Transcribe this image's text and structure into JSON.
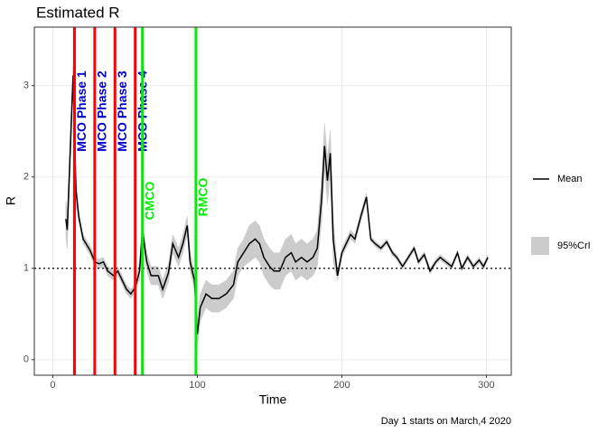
{
  "chart_data": {
    "type": "line",
    "title": "Estimated R",
    "x_label": "Time",
    "y_label": "R",
    "caption": "Day 1 starts on March,4 2020",
    "xlim": [
      -12.8,
      317.2
    ],
    "ylim": [
      -0.17,
      3.64
    ],
    "xticks": [
      0,
      100,
      200,
      300
    ],
    "yticks": [
      0,
      1,
      2,
      3
    ],
    "grid": true,
    "legend": "right",
    "hline": 1,
    "x": [
      9,
      10,
      14,
      16,
      18,
      21,
      23,
      26,
      29,
      32,
      35,
      38,
      42,
      45,
      48,
      51,
      54,
      57,
      60,
      62,
      65,
      68,
      73,
      76,
      80,
      83,
      87,
      90,
      93,
      95,
      98,
      100,
      102,
      106,
      110,
      115,
      120,
      125,
      128,
      132,
      136,
      140,
      143,
      146,
      150,
      153,
      157,
      161,
      165,
      168,
      172,
      176,
      180,
      183,
      186,
      188,
      190,
      192,
      194,
      197,
      200,
      203,
      206,
      209,
      213,
      217,
      220,
      223,
      227,
      231,
      235,
      238,
      242,
      246,
      250,
      253,
      257,
      261,
      265,
      268,
      272,
      276,
      280,
      283,
      287,
      291,
      295,
      298,
      301
    ],
    "series": [
      {
        "name": "Mean",
        "color": "#000000",
        "values": [
          1.54,
          1.42,
          3.11,
          1.86,
          1.56,
          1.32,
          1.27,
          1.19,
          1.07,
          1.05,
          1.07,
          0.97,
          0.92,
          0.97,
          0.87,
          0.77,
          0.72,
          0.79,
          0.97,
          1.42,
          1.07,
          0.92,
          0.92,
          0.77,
          0.95,
          1.27,
          1.12,
          1.27,
          1.47,
          1.07,
          0.87,
          0.28,
          0.57,
          0.72,
          0.67,
          0.67,
          0.72,
          0.82,
          1.07,
          1.17,
          1.27,
          1.32,
          1.27,
          1.12,
          1.02,
          0.97,
          0.97,
          1.12,
          1.17,
          1.07,
          1.12,
          1.07,
          1.12,
          1.22,
          1.76,
          2.34,
          1.96,
          2.26,
          1.32,
          0.92,
          1.17,
          1.27,
          1.37,
          1.32,
          1.56,
          1.78,
          1.32,
          1.27,
          1.22,
          1.29,
          1.17,
          1.12,
          1.02,
          1.12,
          1.22,
          1.07,
          1.15,
          0.97,
          1.07,
          1.12,
          1.07,
          1.02,
          1.17,
          1.0,
          1.12,
          1.02,
          1.09,
          1.02,
          1.12
        ]
      },
      {
        "name": "95%CrI",
        "color": "#cccccc",
        "lower": [
          1.34,
          1.22,
          3.01,
          1.71,
          1.51,
          1.27,
          1.22,
          1.14,
          1.02,
          1.0,
          1.02,
          0.92,
          0.87,
          0.92,
          0.82,
          0.72,
          0.67,
          0.74,
          0.87,
          1.32,
          0.97,
          0.82,
          0.82,
          0.67,
          0.85,
          1.17,
          1.02,
          1.17,
          1.37,
          0.97,
          0.77,
          0.13,
          0.42,
          0.57,
          0.52,
          0.52,
          0.57,
          0.67,
          0.92,
          1.02,
          1.07,
          1.12,
          1.07,
          0.92,
          0.82,
          0.77,
          0.77,
          0.92,
          0.97,
          0.87,
          0.92,
          0.87,
          0.92,
          1.02,
          1.51,
          2.09,
          1.71,
          2.01,
          1.07,
          0.87,
          1.12,
          1.22,
          1.32,
          1.27,
          1.51,
          1.73,
          1.29,
          1.24,
          1.19,
          1.26,
          1.14,
          1.09,
          0.99,
          1.09,
          1.19,
          1.04,
          1.12,
          0.94,
          1.04,
          1.09,
          1.04,
          0.99,
          1.14,
          0.97,
          1.09,
          0.99,
          1.06,
          0.99,
          1.09
        ],
        "upper": [
          1.74,
          1.62,
          3.21,
          2.01,
          1.61,
          1.37,
          1.32,
          1.24,
          1.12,
          1.1,
          1.12,
          1.02,
          0.97,
          1.02,
          0.92,
          0.82,
          0.77,
          0.84,
          1.07,
          1.52,
          1.17,
          1.02,
          1.02,
          0.87,
          1.05,
          1.37,
          1.22,
          1.37,
          1.57,
          1.17,
          0.97,
          0.43,
          0.72,
          0.87,
          0.82,
          0.82,
          0.87,
          0.97,
          1.22,
          1.32,
          1.47,
          1.52,
          1.47,
          1.32,
          1.22,
          1.17,
          1.17,
          1.32,
          1.37,
          1.27,
          1.32,
          1.27,
          1.32,
          1.42,
          2.01,
          2.59,
          2.21,
          2.51,
          1.57,
          0.97,
          1.22,
          1.32,
          1.42,
          1.37,
          1.61,
          1.83,
          1.35,
          1.3,
          1.25,
          1.32,
          1.2,
          1.15,
          1.05,
          1.15,
          1.25,
          1.1,
          1.18,
          1.0,
          1.1,
          1.15,
          1.1,
          1.05,
          1.2,
          1.03,
          1.15,
          1.05,
          1.12,
          1.05,
          1.15
        ]
      }
    ],
    "annotations": [
      {
        "label": "MCO Phase 1",
        "x": 15,
        "y": 2.72,
        "line_color": "#ff0000",
        "text_color": "#0000cc"
      },
      {
        "label": "MCO Phase 2",
        "x": 29,
        "y": 2.72,
        "line_color": "#ff0000",
        "text_color": "#0000cc"
      },
      {
        "label": "MCO Phase 3",
        "x": 43,
        "y": 2.72,
        "line_color": "#ff0000",
        "text_color": "#0000cc"
      },
      {
        "label": "MCO Phase 4",
        "x": 57,
        "y": 2.72,
        "line_color": "#ff0000",
        "text_color": "#0000cc"
      },
      {
        "label": "CMCO",
        "x": 62,
        "y": 1.74,
        "line_color": "#00ee00",
        "text_color": "#00ee00"
      },
      {
        "label": "RMCO",
        "x": 99,
        "y": 1.78,
        "line_color": "#00ee00",
        "text_color": "#00ee00"
      }
    ]
  }
}
